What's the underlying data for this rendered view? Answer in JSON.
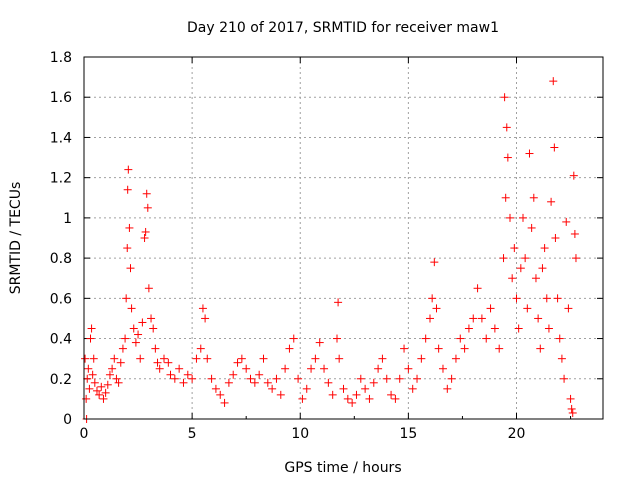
{
  "chart_data": {
    "type": "scatter",
    "title": "Day 210 of 2017, SRMTID for receiver maw1",
    "xlabel": "GPS time / hours",
    "ylabel": "SRMTID / TECUs",
    "xlim": [
      0,
      24
    ],
    "ylim": [
      0,
      1.8
    ],
    "xticks": [
      0,
      5,
      10,
      15,
      20
    ],
    "yticks": [
      0,
      0.2,
      0.4,
      0.6,
      0.8,
      1,
      1.2,
      1.4,
      1.6,
      1.8
    ],
    "grid": true,
    "marker": "+",
    "color": "#ff0000",
    "series": [
      {
        "name": "SRMTID",
        "points": [
          [
            0.05,
            0.3
          ],
          [
            0.1,
            0.1
          ],
          [
            0.12,
            0.0
          ],
          [
            0.15,
            0.2
          ],
          [
            0.2,
            0.25
          ],
          [
            0.25,
            0.15
          ],
          [
            0.3,
            0.4
          ],
          [
            0.35,
            0.45
          ],
          [
            0.4,
            0.22
          ],
          [
            0.45,
            0.3
          ],
          [
            0.5,
            0.18
          ],
          [
            0.6,
            0.14
          ],
          [
            0.7,
            0.12
          ],
          [
            0.8,
            0.16
          ],
          [
            0.9,
            0.1
          ],
          [
            1.0,
            0.13
          ],
          [
            1.1,
            0.17
          ],
          [
            1.2,
            0.22
          ],
          [
            1.3,
            0.25
          ],
          [
            1.4,
            0.3
          ],
          [
            1.5,
            0.2
          ],
          [
            1.6,
            0.18
          ],
          [
            1.7,
            0.28
          ],
          [
            1.8,
            0.35
          ],
          [
            1.9,
            0.4
          ],
          [
            1.95,
            0.6
          ],
          [
            2.0,
            0.85
          ],
          [
            2.02,
            1.14
          ],
          [
            2.05,
            1.24
          ],
          [
            2.1,
            0.95
          ],
          [
            2.15,
            0.75
          ],
          [
            2.2,
            0.55
          ],
          [
            2.3,
            0.45
          ],
          [
            2.4,
            0.38
          ],
          [
            2.5,
            0.42
          ],
          [
            2.6,
            0.3
          ],
          [
            2.7,
            0.48
          ],
          [
            2.8,
            0.9
          ],
          [
            2.85,
            0.93
          ],
          [
            2.9,
            1.12
          ],
          [
            2.95,
            1.05
          ],
          [
            3.0,
            0.65
          ],
          [
            3.1,
            0.5
          ],
          [
            3.2,
            0.45
          ],
          [
            3.3,
            0.35
          ],
          [
            3.4,
            0.28
          ],
          [
            3.5,
            0.25
          ],
          [
            3.7,
            0.3
          ],
          [
            3.9,
            0.28
          ],
          [
            4.0,
            0.22
          ],
          [
            4.2,
            0.2
          ],
          [
            4.4,
            0.25
          ],
          [
            4.6,
            0.18
          ],
          [
            4.8,
            0.22
          ],
          [
            5.0,
            0.2
          ],
          [
            5.2,
            0.3
          ],
          [
            5.4,
            0.35
          ],
          [
            5.5,
            0.55
          ],
          [
            5.6,
            0.5
          ],
          [
            5.7,
            0.3
          ],
          [
            5.9,
            0.2
          ],
          [
            6.1,
            0.15
          ],
          [
            6.3,
            0.12
          ],
          [
            6.5,
            0.08
          ],
          [
            6.7,
            0.18
          ],
          [
            6.9,
            0.22
          ],
          [
            7.1,
            0.28
          ],
          [
            7.3,
            0.3
          ],
          [
            7.5,
            0.25
          ],
          [
            7.7,
            0.2
          ],
          [
            7.9,
            0.18
          ],
          [
            8.1,
            0.22
          ],
          [
            8.3,
            0.3
          ],
          [
            8.5,
            0.18
          ],
          [
            8.7,
            0.15
          ],
          [
            8.9,
            0.2
          ],
          [
            9.1,
            0.12
          ],
          [
            9.3,
            0.25
          ],
          [
            9.5,
            0.35
          ],
          [
            9.7,
            0.4
          ],
          [
            9.9,
            0.2
          ],
          [
            10.1,
            0.1
          ],
          [
            10.3,
            0.15
          ],
          [
            10.5,
            0.25
          ],
          [
            10.7,
            0.3
          ],
          [
            10.9,
            0.38
          ],
          [
            11.1,
            0.25
          ],
          [
            11.3,
            0.18
          ],
          [
            11.5,
            0.12
          ],
          [
            11.7,
            0.4
          ],
          [
            11.75,
            0.58
          ],
          [
            11.8,
            0.3
          ],
          [
            12.0,
            0.15
          ],
          [
            12.2,
            0.1
          ],
          [
            12.4,
            0.08
          ],
          [
            12.6,
            0.12
          ],
          [
            12.8,
            0.2
          ],
          [
            13.0,
            0.15
          ],
          [
            13.2,
            0.1
          ],
          [
            13.4,
            0.18
          ],
          [
            13.6,
            0.25
          ],
          [
            13.8,
            0.3
          ],
          [
            14.0,
            0.2
          ],
          [
            14.2,
            0.12
          ],
          [
            14.4,
            0.1
          ],
          [
            14.6,
            0.2
          ],
          [
            14.8,
            0.35
          ],
          [
            15.0,
            0.25
          ],
          [
            15.2,
            0.15
          ],
          [
            15.4,
            0.2
          ],
          [
            15.6,
            0.3
          ],
          [
            15.8,
            0.4
          ],
          [
            16.0,
            0.5
          ],
          [
            16.1,
            0.6
          ],
          [
            16.2,
            0.78
          ],
          [
            16.3,
            0.55
          ],
          [
            16.4,
            0.35
          ],
          [
            16.6,
            0.25
          ],
          [
            16.8,
            0.15
          ],
          [
            17.0,
            0.2
          ],
          [
            17.2,
            0.3
          ],
          [
            17.4,
            0.4
          ],
          [
            17.6,
            0.35
          ],
          [
            17.8,
            0.45
          ],
          [
            18.0,
            0.5
          ],
          [
            18.2,
            0.65
          ],
          [
            18.4,
            0.5
          ],
          [
            18.6,
            0.4
          ],
          [
            18.8,
            0.55
          ],
          [
            19.0,
            0.45
          ],
          [
            19.2,
            0.35
          ],
          [
            19.4,
            0.8
          ],
          [
            19.45,
            1.6
          ],
          [
            19.5,
            1.1
          ],
          [
            19.55,
            1.45
          ],
          [
            19.6,
            1.3
          ],
          [
            19.7,
            1.0
          ],
          [
            19.8,
            0.7
          ],
          [
            19.9,
            0.85
          ],
          [
            20.0,
            0.6
          ],
          [
            20.1,
            0.45
          ],
          [
            20.2,
            0.75
          ],
          [
            20.3,
            1.0
          ],
          [
            20.4,
            0.8
          ],
          [
            20.5,
            0.55
          ],
          [
            20.6,
            1.32
          ],
          [
            20.7,
            0.95
          ],
          [
            20.8,
            1.1
          ],
          [
            20.9,
            0.7
          ],
          [
            21.0,
            0.5
          ],
          [
            21.1,
            0.35
          ],
          [
            21.2,
            0.75
          ],
          [
            21.3,
            0.85
          ],
          [
            21.4,
            0.6
          ],
          [
            21.5,
            0.45
          ],
          [
            21.6,
            1.08
          ],
          [
            21.7,
            1.68
          ],
          [
            21.75,
            1.35
          ],
          [
            21.8,
            0.9
          ],
          [
            21.9,
            0.6
          ],
          [
            22.0,
            0.4
          ],
          [
            22.1,
            0.3
          ],
          [
            22.2,
            0.2
          ],
          [
            22.3,
            0.98
          ],
          [
            22.4,
            0.55
          ],
          [
            22.5,
            0.1
          ],
          [
            22.55,
            0.05
          ],
          [
            22.6,
            0.03
          ],
          [
            22.65,
            1.21
          ],
          [
            22.7,
            0.92
          ],
          [
            22.75,
            0.8
          ]
        ]
      }
    ]
  }
}
